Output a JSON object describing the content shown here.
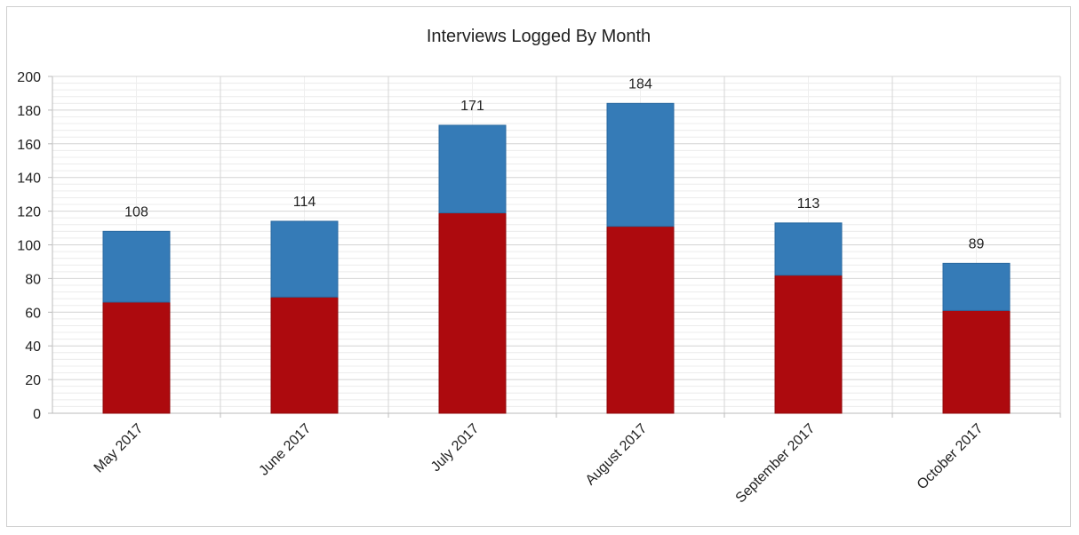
{
  "chart_data": {
    "type": "bar",
    "stacked": true,
    "title": "Interviews Logged By Month",
    "xlabel": "",
    "ylabel": "",
    "ylim": [
      0,
      200
    ],
    "yticks": [
      "0",
      "20",
      "40",
      "60",
      "80",
      "100",
      "120",
      "140",
      "160",
      "180",
      "200"
    ],
    "grid": true,
    "legend": "none",
    "categories": [
      "May 2017",
      "June 2017",
      "July 2017",
      "August 2017",
      "September 2017",
      "October 2017"
    ],
    "series": [
      {
        "values": [
          66,
          69,
          119,
          111,
          82,
          61
        ],
        "color": "#ad0a0e"
      },
      {
        "values": [
          42,
          45,
          52,
          73,
          31,
          28
        ],
        "color": "#357bb7"
      }
    ],
    "totals": [
      108,
      114,
      171,
      184,
      113,
      89
    ]
  }
}
